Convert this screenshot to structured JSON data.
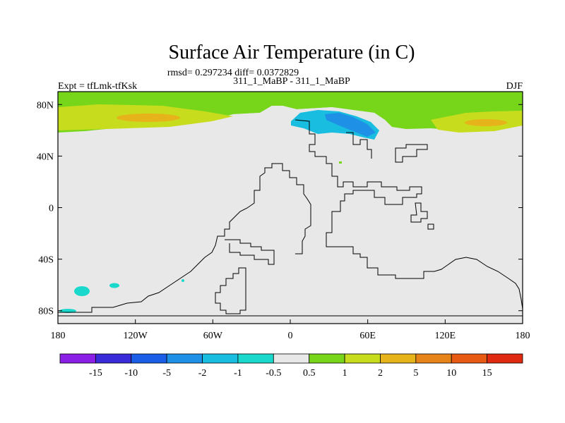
{
  "chart_data": {
    "type": "heatmap",
    "title": "Surface Air Temperature (in C)",
    "stats_line": "rmsd= 0.297234  diff= 0.0372829",
    "left_label": "Expt = tfLmk-tfKsk",
    "center_label": "311_1_MaBP - 311_1_MaBP",
    "right_label": "DJF",
    "x_ticks": [
      "180",
      "120W",
      "60W",
      "0",
      "60E",
      "120E",
      "180"
    ],
    "y_ticks": [
      "80N",
      "40N",
      "0",
      "40S",
      "80S"
    ],
    "xlim": [
      -180,
      180
    ],
    "ylim": [
      -90,
      90
    ],
    "colorbar": {
      "labels": [
        "-15",
        "-10",
        "-5",
        "-2",
        "-1",
        "-0.5",
        "0.5",
        "1",
        "2",
        "5",
        "10",
        "15"
      ],
      "colors": [
        "#8c1fe6",
        "#3a2bd9",
        "#1a5ee8",
        "#1e90e6",
        "#18bde0",
        "#1ad9cc",
        "#e8e8e8",
        "#78d61a",
        "#c8dc1e",
        "#e6b41a",
        "#e6841a",
        "#e65a14",
        "#e02a10"
      ]
    },
    "regions": [
      {
        "name": "arctic-warming-band",
        "class_color": "#78d61a",
        "value_range": "0.5 to 1"
      },
      {
        "name": "siberia-warming-core",
        "class_color": "#c8dc1e",
        "value_range": "1 to 2"
      },
      {
        "name": "siberia-strong-warming",
        "class_color": "#e6b41a",
        "value_range": "2 to 5"
      },
      {
        "name": "north-atlantic-cooling",
        "class_color": "#18bde0",
        "value_range": "-2 to -1"
      },
      {
        "name": "barents-cooling-core",
        "class_color": "#1e90e6",
        "value_range": "-5 to -2"
      },
      {
        "name": "southern-ocean-cooling",
        "class_color": "#1ad9cc",
        "value_range": "-1 to -0.5"
      }
    ]
  }
}
